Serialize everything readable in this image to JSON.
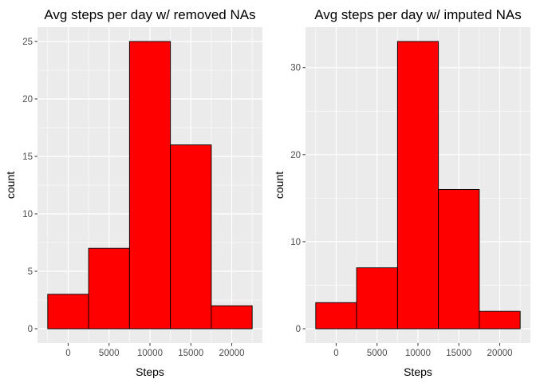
{
  "chart_data": [
    {
      "type": "bar",
      "subtype": "histogram",
      "title": "Avg steps per day w/ removed NAs",
      "xlabel": "Steps",
      "ylabel": "count",
      "bin_width": 5000,
      "bins": [
        {
          "x0": -2500,
          "x1": 2500,
          "count": 3
        },
        {
          "x0": 2500,
          "x1": 7500,
          "count": 7
        },
        {
          "x0": 7500,
          "x1": 12500,
          "count": 25
        },
        {
          "x0": 12500,
          "x1": 17500,
          "count": 16
        },
        {
          "x0": 17500,
          "x1": 22500,
          "count": 2
        }
      ],
      "xlim": [
        -3750,
        23750
      ],
      "ylim": [
        -1.25,
        26.25
      ],
      "xticks": [
        0,
        5000,
        10000,
        15000,
        20000
      ],
      "xtick_labels": [
        "0",
        "5000",
        "10000",
        "15000",
        "20000"
      ],
      "yticks": [
        0,
        5,
        10,
        15,
        20,
        25
      ],
      "ytick_labels": [
        "0",
        "5",
        "10",
        "15",
        "20",
        "25"
      ],
      "grid": true,
      "fill_color": "#FF0000",
      "edge_color": "#000000",
      "panel_background": "#EBEBEB",
      "grid_color": "#FFFFFF"
    },
    {
      "type": "bar",
      "subtype": "histogram",
      "title": "Avg steps per day w/ imputed NAs",
      "xlabel": "Steps",
      "ylabel": "count",
      "bin_width": 5000,
      "bins": [
        {
          "x0": -2500,
          "x1": 2500,
          "count": 3
        },
        {
          "x0": 2500,
          "x1": 7500,
          "count": 7
        },
        {
          "x0": 7500,
          "x1": 12500,
          "count": 33
        },
        {
          "x0": 12500,
          "x1": 17500,
          "count": 16
        },
        {
          "x0": 17500,
          "x1": 22500,
          "count": 2
        }
      ],
      "xlim": [
        -3750,
        23750
      ],
      "ylim": [
        -1.65,
        34.65
      ],
      "xticks": [
        0,
        5000,
        10000,
        15000,
        20000
      ],
      "xtick_labels": [
        "0",
        "5000",
        "10000",
        "15000",
        "20000"
      ],
      "yticks": [
        0,
        10,
        20,
        30
      ],
      "ytick_labels": [
        "0",
        "10",
        "20",
        "30"
      ],
      "grid": true,
      "fill_color": "#FF0000",
      "edge_color": "#000000",
      "panel_background": "#EBEBEB",
      "grid_color": "#FFFFFF"
    }
  ]
}
